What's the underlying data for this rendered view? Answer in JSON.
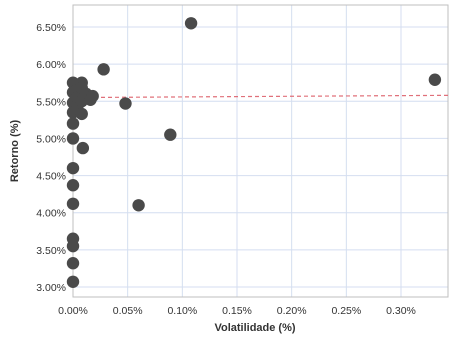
{
  "chart_data": {
    "type": "scatter",
    "title": "",
    "xlabel": "Volatilidade (%)",
    "ylabel": "Retorno (%)",
    "xlim": [
      0,
      0.35
    ],
    "ylim": [
      2.95,
      6.7
    ],
    "x_ticks": [
      0,
      0.05,
      0.1,
      0.15,
      0.2,
      0.25,
      0.3
    ],
    "x_tick_labels": [
      "0.00%",
      "0.05%",
      "0.10%",
      "0.15%",
      "0.20%",
      "0.25%",
      "0.30%"
    ],
    "y_ticks": [
      3.0,
      3.5,
      4.0,
      4.5,
      5.0,
      5.5,
      6.0,
      6.5
    ],
    "y_tick_labels": [
      "3.00%",
      "3.50%",
      "4.00%",
      "4.50%",
      "5.00%",
      "5.50%",
      "6.00%",
      "6.50%"
    ],
    "grid": true,
    "points": [
      {
        "x": 0.0,
        "y": 5.75
      },
      {
        "x": 0.0,
        "y": 5.62
      },
      {
        "x": 0.0,
        "y": 5.48
      },
      {
        "x": 0.0,
        "y": 5.35
      },
      {
        "x": 0.0,
        "y": 5.2
      },
      {
        "x": 0.0,
        "y": 5.0
      },
      {
        "x": 0.0,
        "y": 4.6
      },
      {
        "x": 0.0,
        "y": 4.37
      },
      {
        "x": 0.0,
        "y": 4.12
      },
      {
        "x": 0.0,
        "y": 3.65
      },
      {
        "x": 0.0,
        "y": 3.55
      },
      {
        "x": 0.0,
        "y": 3.32
      },
      {
        "x": 0.0,
        "y": 3.07
      },
      {
        "x": 0.003,
        "y": 5.65
      },
      {
        "x": 0.004,
        "y": 5.55
      },
      {
        "x": 0.004,
        "y": 5.4
      },
      {
        "x": 0.008,
        "y": 5.75
      },
      {
        "x": 0.008,
        "y": 5.68
      },
      {
        "x": 0.008,
        "y": 5.5
      },
      {
        "x": 0.008,
        "y": 5.33
      },
      {
        "x": 0.009,
        "y": 4.87
      },
      {
        "x": 0.012,
        "y": 5.6
      },
      {
        "x": 0.016,
        "y": 5.52
      },
      {
        "x": 0.018,
        "y": 5.57
      },
      {
        "x": 0.028,
        "y": 5.93
      },
      {
        "x": 0.048,
        "y": 5.47
      },
      {
        "x": 0.06,
        "y": 4.1
      },
      {
        "x": 0.089,
        "y": 5.05
      },
      {
        "x": 0.108,
        "y": 6.55
      },
      {
        "x": 0.331,
        "y": 5.79
      }
    ],
    "reference_line": {
      "style": "dashed",
      "y_start": 5.55,
      "y_end": 5.58
    },
    "colors": {
      "point": "#4a4a4a",
      "reference_line": "#e0707a",
      "grid": "#d4def0",
      "axis": "#bfbfbf"
    }
  }
}
